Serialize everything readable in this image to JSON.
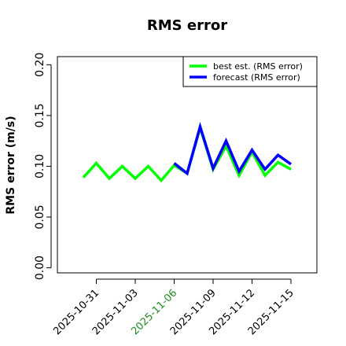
{
  "chart_data": {
    "type": "line",
    "title": "RMS error",
    "y_label": "RMS error (m/s)",
    "x": [
      "2025-10-30",
      "2025-10-31",
      "2025-11-01",
      "2025-11-02",
      "2025-11-03",
      "2025-11-04",
      "2025-11-05",
      "2025-11-06",
      "2025-11-07",
      "2025-11-08",
      "2025-11-09",
      "2025-11-10",
      "2025-11-11",
      "2025-11-12",
      "2025-11-13",
      "2025-11-14",
      "2025-11-15"
    ],
    "series": [
      {
        "name": "best est. (RMS error)",
        "color": "#00ff00",
        "values": [
          0.089,
          0.103,
          0.088,
          0.1,
          0.088,
          0.1,
          0.086,
          0.101,
          0.093,
          0.138,
          0.097,
          0.12,
          0.091,
          0.114,
          0.091,
          0.104,
          0.097
        ]
      },
      {
        "name": "forecast (RMS error)",
        "color": "#0000ff",
        "values": [
          null,
          null,
          null,
          null,
          null,
          null,
          null,
          0.103,
          0.093,
          0.139,
          0.098,
          0.125,
          0.095,
          0.116,
          0.097,
          0.111,
          0.102
        ]
      }
    ],
    "xlim": [
      "2025-10-28",
      "2025-11-17"
    ],
    "xticks": [
      "2025-10-31",
      "2025-11-03",
      "2025-11-06",
      "2025-11-09",
      "2025-11-12",
      "2025-11-15"
    ],
    "xtick_colors": [
      "#000000",
      "#000000",
      "#228b22",
      "#000000",
      "#000000",
      "#000000"
    ],
    "ylim": [
      -0.005,
      0.208
    ],
    "yticks": [
      {
        "value": 0,
        "label": "0.00"
      },
      0.05,
      {
        "value": 0.1,
        "label": "0.10"
      },
      0.15,
      {
        "value": 0.2,
        "label": "0.20"
      }
    ],
    "legend": "upper right",
    "grid": false
  }
}
